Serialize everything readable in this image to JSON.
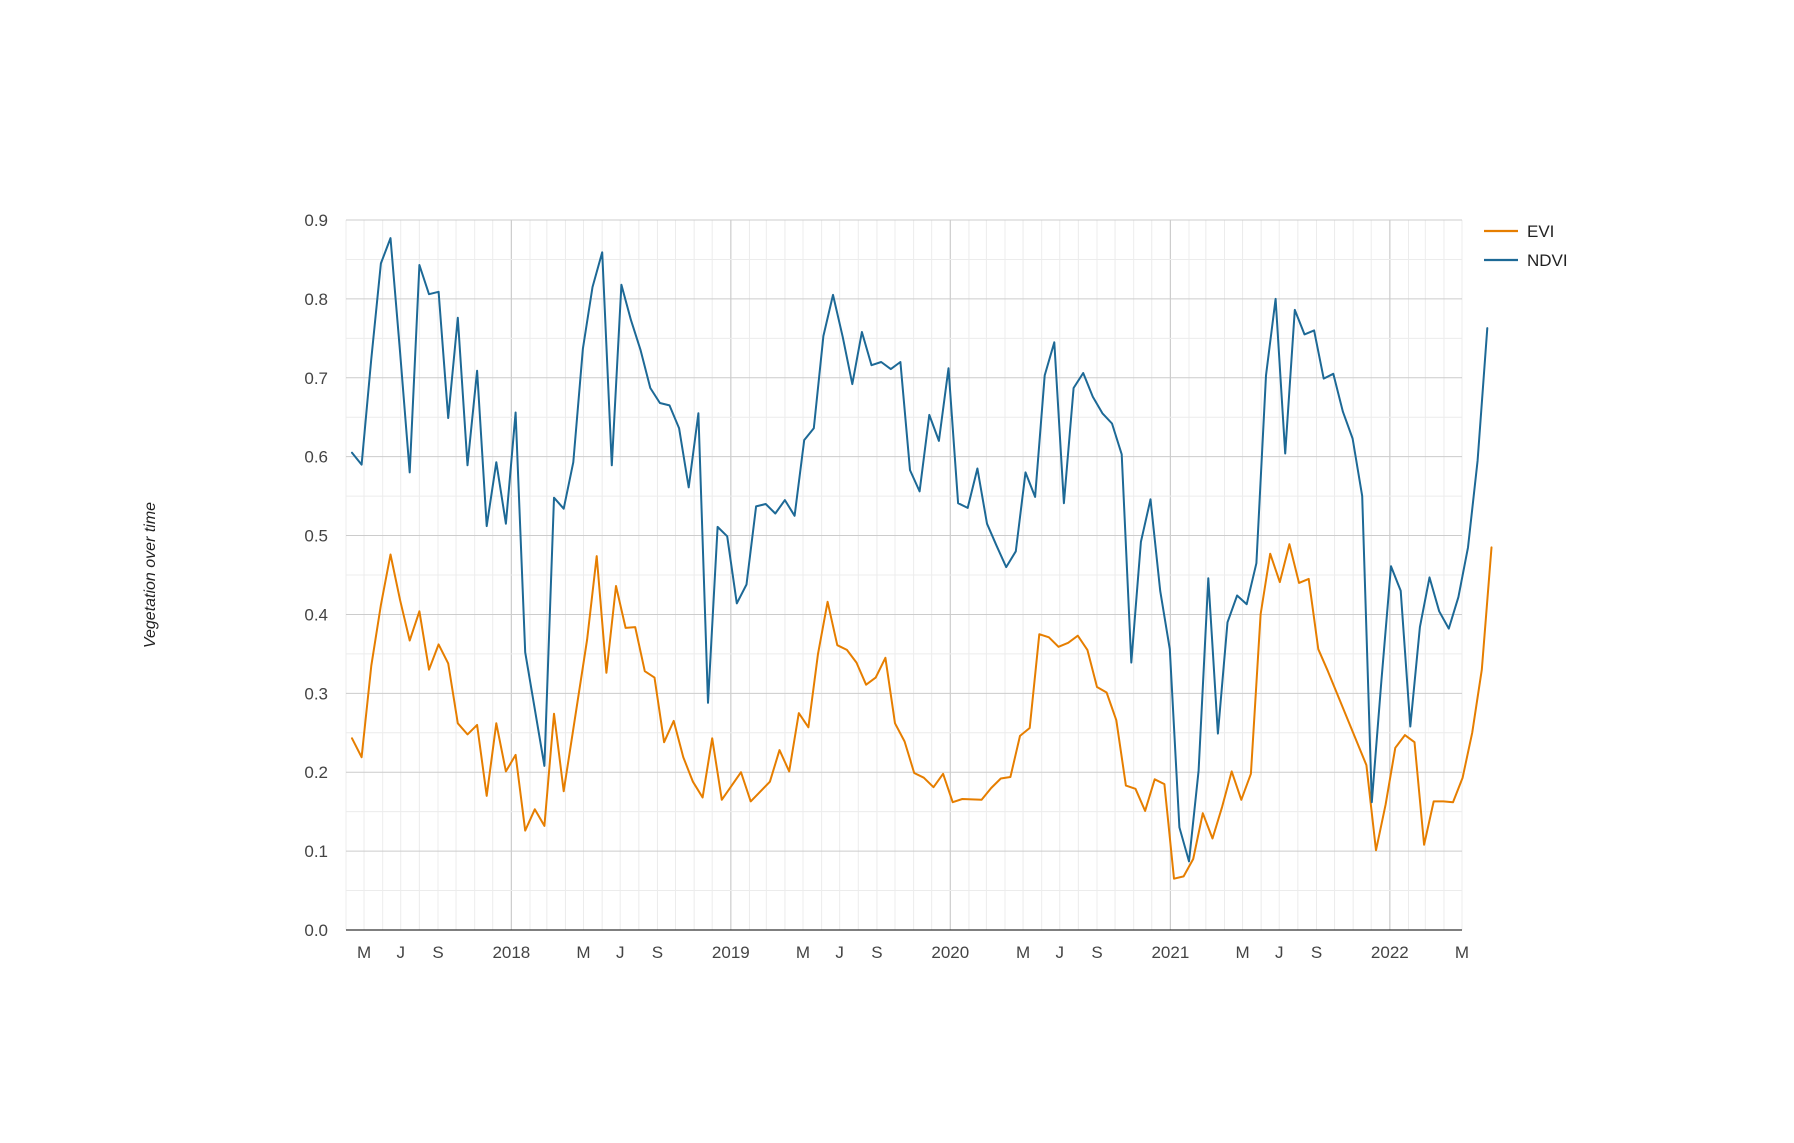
{
  "chart_data": {
    "type": "line",
    "title": "",
    "xlabel": "",
    "ylabel": "Vegetation over time",
    "ylim": [
      0,
      0.9
    ],
    "yticks": [
      0.0,
      0.1,
      0.2,
      0.3,
      0.4,
      0.5,
      0.6,
      0.7,
      0.8,
      0.9
    ],
    "ytick_labels": [
      "0.0",
      "0.1",
      "0.2",
      "0.3",
      "0.4",
      "0.5",
      "0.6",
      "0.7",
      "0.8",
      "0.9"
    ],
    "xlim": [
      "2017-04",
      "2022-05"
    ],
    "xtick_labels": [
      {
        "x": "2017-05",
        "label": "M"
      },
      {
        "x": "2017-07",
        "label": "J"
      },
      {
        "x": "2017-09",
        "label": "S"
      },
      {
        "x": "2018-01",
        "label": "2018"
      },
      {
        "x": "2018-05",
        "label": "M"
      },
      {
        "x": "2018-07",
        "label": "J"
      },
      {
        "x": "2018-09",
        "label": "S"
      },
      {
        "x": "2019-01",
        "label": "2019"
      },
      {
        "x": "2019-05",
        "label": "M"
      },
      {
        "x": "2019-07",
        "label": "J"
      },
      {
        "x": "2019-09",
        "label": "S"
      },
      {
        "x": "2020-01",
        "label": "2020"
      },
      {
        "x": "2020-05",
        "label": "M"
      },
      {
        "x": "2020-07",
        "label": "J"
      },
      {
        "x": "2020-09",
        "label": "S"
      },
      {
        "x": "2021-01",
        "label": "2021"
      },
      {
        "x": "2021-05",
        "label": "M"
      },
      {
        "x": "2021-07",
        "label": "J"
      },
      {
        "x": "2021-09",
        "label": "S"
      },
      {
        "x": "2022-01",
        "label": "2022"
      },
      {
        "x": "2022-05",
        "label": "M"
      }
    ],
    "grid": true,
    "legend_position": "right",
    "series": [
      {
        "name": "EVI",
        "color": "#e67e00",
        "points": [
          [
            "2017-04-11",
            0.243
          ],
          [
            "2017-04-27",
            0.219
          ],
          [
            "2017-05-13",
            0.335
          ],
          [
            "2017-05-29",
            0.412
          ],
          [
            "2017-06-14",
            0.476
          ],
          [
            "2017-06-30",
            0.418
          ],
          [
            "2017-07-16",
            0.367
          ],
          [
            "2017-08-01",
            0.404
          ],
          [
            "2017-08-17",
            0.33
          ],
          [
            "2017-09-02",
            0.362
          ],
          [
            "2017-09-18",
            0.338
          ],
          [
            "2017-10-04",
            0.262
          ],
          [
            "2017-10-20",
            0.248
          ],
          [
            "2017-11-05",
            0.26
          ],
          [
            "2017-11-21",
            0.17
          ],
          [
            "2017-12-07",
            0.262
          ],
          [
            "2017-12-23",
            0.201
          ],
          [
            "2018-01-08",
            0.222
          ],
          [
            "2018-01-24",
            0.126
          ],
          [
            "2018-02-09",
            0.153
          ],
          [
            "2018-02-25",
            0.132
          ],
          [
            "2018-03-13",
            0.274
          ],
          [
            "2018-03-29",
            0.176
          ],
          [
            "2018-05-07",
            0.368
          ],
          [
            "2018-05-23",
            0.474
          ],
          [
            "2018-06-08",
            0.326
          ],
          [
            "2018-06-24",
            0.436
          ],
          [
            "2018-07-10",
            0.383
          ],
          [
            "2018-07-26",
            0.384
          ],
          [
            "2018-08-11",
            0.328
          ],
          [
            "2018-08-27",
            0.32
          ],
          [
            "2018-09-12",
            0.238
          ],
          [
            "2018-09-28",
            0.265
          ],
          [
            "2018-10-14",
            0.219
          ],
          [
            "2018-10-30",
            0.188
          ],
          [
            "2018-11-15",
            0.168
          ],
          [
            "2018-12-01",
            0.243
          ],
          [
            "2018-12-17",
            0.165
          ],
          [
            "2019-01-18",
            0.2
          ],
          [
            "2019-02-03",
            0.163
          ],
          [
            "2019-03-07",
            0.188
          ],
          [
            "2019-03-23",
            0.228
          ],
          [
            "2019-04-08",
            0.201
          ],
          [
            "2019-04-24",
            0.275
          ],
          [
            "2019-05-10",
            0.257
          ],
          [
            "2019-05-26",
            0.35
          ],
          [
            "2019-06-11",
            0.416
          ],
          [
            "2019-06-27",
            0.361
          ],
          [
            "2019-07-13",
            0.355
          ],
          [
            "2019-07-29",
            0.339
          ],
          [
            "2019-08-14",
            0.311
          ],
          [
            "2019-08-30",
            0.32
          ],
          [
            "2019-09-15",
            0.345
          ],
          [
            "2019-10-01",
            0.262
          ],
          [
            "2019-10-17",
            0.239
          ],
          [
            "2019-11-02",
            0.199
          ],
          [
            "2019-11-18",
            0.193
          ],
          [
            "2019-12-04",
            0.181
          ],
          [
            "2019-12-20",
            0.198
          ],
          [
            "2020-01-05",
            0.162
          ],
          [
            "2020-01-21",
            0.166
          ],
          [
            "2020-02-22",
            0.165
          ],
          [
            "2020-03-09",
            0.18
          ],
          [
            "2020-03-25",
            0.192
          ],
          [
            "2020-04-10",
            0.194
          ],
          [
            "2020-04-26",
            0.246
          ],
          [
            "2020-05-12",
            0.256
          ],
          [
            "2020-05-28",
            0.375
          ],
          [
            "2020-06-13",
            0.371
          ],
          [
            "2020-06-29",
            0.359
          ],
          [
            "2020-07-15",
            0.364
          ],
          [
            "2020-07-31",
            0.373
          ],
          [
            "2020-08-16",
            0.355
          ],
          [
            "2020-09-01",
            0.308
          ],
          [
            "2020-09-17",
            0.301
          ],
          [
            "2020-10-03",
            0.266
          ],
          [
            "2020-10-19",
            0.183
          ],
          [
            "2020-11-04",
            0.179
          ],
          [
            "2020-11-20",
            0.151
          ],
          [
            "2020-12-06",
            0.191
          ],
          [
            "2020-12-22",
            0.185
          ],
          [
            "2021-01-07",
            0.065
          ],
          [
            "2021-01-23",
            0.068
          ],
          [
            "2021-02-08",
            0.09
          ],
          [
            "2021-02-24",
            0.148
          ],
          [
            "2021-03-12",
            0.116
          ],
          [
            "2021-03-28",
            0.156
          ],
          [
            "2021-04-13",
            0.201
          ],
          [
            "2021-04-29",
            0.165
          ],
          [
            "2021-05-15",
            0.198
          ],
          [
            "2021-05-31",
            0.4
          ],
          [
            "2021-06-16",
            0.477
          ],
          [
            "2021-07-02",
            0.441
          ],
          [
            "2021-07-18",
            0.489
          ],
          [
            "2021-08-03",
            0.44
          ],
          [
            "2021-08-19",
            0.445
          ],
          [
            "2021-09-04",
            0.356
          ],
          [
            "2021-09-20",
            0.328
          ],
          [
            "2021-11-23",
            0.209
          ],
          [
            "2021-12-09",
            0.101
          ],
          [
            "2021-12-25",
            0.159
          ],
          [
            "2022-01-10",
            0.231
          ],
          [
            "2022-01-26",
            0.247
          ],
          [
            "2022-02-11",
            0.238
          ],
          [
            "2022-02-27",
            0.108
          ],
          [
            "2022-03-15",
            0.163
          ],
          [
            "2022-03-31",
            0.163
          ],
          [
            "2022-04-16",
            0.162
          ],
          [
            "2022-05-02",
            0.193
          ],
          [
            "2022-05-18",
            0.25
          ],
          [
            "2022-06-03",
            0.33
          ],
          [
            "2022-06-19",
            0.485
          ]
        ]
      },
      {
        "name": "NDVI",
        "color": "#1d6996",
        "points": [
          [
            "2017-04-11",
            0.605
          ],
          [
            "2017-04-27",
            0.59
          ],
          [
            "2017-05-13",
            0.724
          ],
          [
            "2017-05-29",
            0.845
          ],
          [
            "2017-06-14",
            0.877
          ],
          [
            "2017-06-30",
            0.732
          ],
          [
            "2017-07-16",
            0.58
          ],
          [
            "2017-08-01",
            0.843
          ],
          [
            "2017-08-17",
            0.806
          ],
          [
            "2017-09-02",
            0.809
          ],
          [
            "2017-09-18",
            0.649
          ],
          [
            "2017-10-04",
            0.776
          ],
          [
            "2017-10-20",
            0.589
          ],
          [
            "2017-11-05",
            0.709
          ],
          [
            "2017-11-21",
            0.512
          ],
          [
            "2017-12-07",
            0.593
          ],
          [
            "2017-12-23",
            0.515
          ],
          [
            "2018-01-08",
            0.656
          ],
          [
            "2018-01-24",
            0.352
          ],
          [
            "2018-02-25",
            0.208
          ],
          [
            "2018-03-13",
            0.548
          ],
          [
            "2018-03-29",
            0.534
          ],
          [
            "2018-04-14",
            0.593
          ],
          [
            "2018-04-30",
            0.737
          ],
          [
            "2018-05-16",
            0.815
          ],
          [
            "2018-06-01",
            0.859
          ],
          [
            "2018-06-17",
            0.589
          ],
          [
            "2018-07-03",
            0.818
          ],
          [
            "2018-07-19",
            0.773
          ],
          [
            "2018-08-04",
            0.735
          ],
          [
            "2018-08-20",
            0.687
          ],
          [
            "2018-09-05",
            0.668
          ],
          [
            "2018-09-21",
            0.665
          ],
          [
            "2018-10-07",
            0.636
          ],
          [
            "2018-10-23",
            0.561
          ],
          [
            "2018-11-08",
            0.655
          ],
          [
            "2018-11-24",
            0.288
          ],
          [
            "2018-12-10",
            0.511
          ],
          [
            "2018-12-26",
            0.499
          ],
          [
            "2019-01-11",
            0.414
          ],
          [
            "2019-01-27",
            0.438
          ],
          [
            "2019-02-12",
            0.537
          ],
          [
            "2019-02-28",
            0.54
          ],
          [
            "2019-03-16",
            0.528
          ],
          [
            "2019-04-01",
            0.545
          ],
          [
            "2019-04-17",
            0.525
          ],
          [
            "2019-05-03",
            0.621
          ],
          [
            "2019-05-19",
            0.636
          ],
          [
            "2019-06-04",
            0.753
          ],
          [
            "2019-06-20",
            0.805
          ],
          [
            "2019-07-06",
            0.752
          ],
          [
            "2019-07-22",
            0.692
          ],
          [
            "2019-08-07",
            0.758
          ],
          [
            "2019-08-23",
            0.716
          ],
          [
            "2019-09-08",
            0.72
          ],
          [
            "2019-09-24",
            0.711
          ],
          [
            "2019-10-10",
            0.72
          ],
          [
            "2019-10-26",
            0.583
          ],
          [
            "2019-11-11",
            0.556
          ],
          [
            "2019-11-27",
            0.653
          ],
          [
            "2019-12-13",
            0.62
          ],
          [
            "2019-12-29",
            0.712
          ],
          [
            "2020-01-14",
            0.541
          ],
          [
            "2020-01-30",
            0.535
          ],
          [
            "2020-02-15",
            0.585
          ],
          [
            "2020-03-02",
            0.515
          ],
          [
            "2020-03-18",
            0.487
          ],
          [
            "2020-04-03",
            0.46
          ],
          [
            "2020-04-19",
            0.48
          ],
          [
            "2020-05-05",
            0.58
          ],
          [
            "2020-05-21",
            0.549
          ],
          [
            "2020-06-06",
            0.703
          ],
          [
            "2020-06-22",
            0.745
          ],
          [
            "2020-07-08",
            0.541
          ],
          [
            "2020-07-24",
            0.687
          ],
          [
            "2020-08-09",
            0.706
          ],
          [
            "2020-08-25",
            0.676
          ],
          [
            "2020-09-10",
            0.655
          ],
          [
            "2020-09-26",
            0.642
          ],
          [
            "2020-10-12",
            0.603
          ],
          [
            "2020-10-28",
            0.339
          ],
          [
            "2020-11-13",
            0.492
          ],
          [
            "2020-11-29",
            0.546
          ],
          [
            "2020-12-15",
            0.43
          ],
          [
            "2020-12-31",
            0.356
          ],
          [
            "2021-01-16",
            0.13
          ],
          [
            "2021-02-01",
            0.087
          ],
          [
            "2021-02-17",
            0.202
          ],
          [
            "2021-03-05",
            0.446
          ],
          [
            "2021-03-21",
            0.249
          ],
          [
            "2021-04-06",
            0.39
          ],
          [
            "2021-04-22",
            0.424
          ],
          [
            "2021-05-08",
            0.413
          ],
          [
            "2021-05-24",
            0.465
          ],
          [
            "2021-06-09",
            0.703
          ],
          [
            "2021-06-25",
            0.8
          ],
          [
            "2021-07-11",
            0.604
          ],
          [
            "2021-07-27",
            0.786
          ],
          [
            "2021-08-12",
            0.755
          ],
          [
            "2021-08-28",
            0.76
          ],
          [
            "2021-09-13",
            0.699
          ],
          [
            "2021-09-29",
            0.705
          ],
          [
            "2021-10-15",
            0.657
          ],
          [
            "2021-10-31",
            0.623
          ],
          [
            "2021-11-16",
            0.55
          ],
          [
            "2021-12-02",
            0.162
          ],
          [
            "2021-12-18",
            0.316
          ],
          [
            "2022-01-03",
            0.461
          ],
          [
            "2022-01-19",
            0.43
          ],
          [
            "2022-02-04",
            0.258
          ],
          [
            "2022-02-20",
            0.384
          ],
          [
            "2022-03-08",
            0.447
          ],
          [
            "2022-03-24",
            0.404
          ],
          [
            "2022-04-09",
            0.382
          ],
          [
            "2022-04-25",
            0.422
          ],
          [
            "2022-05-11",
            0.485
          ],
          [
            "2022-05-27",
            0.595
          ],
          [
            "2022-06-12",
            0.763
          ]
        ]
      }
    ]
  }
}
